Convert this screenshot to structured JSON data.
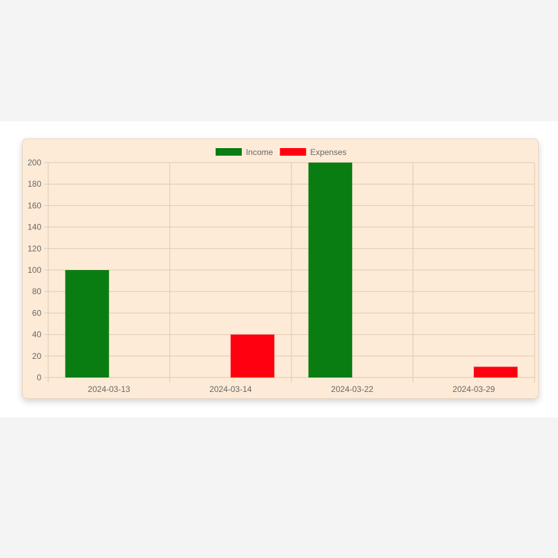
{
  "chart_data": {
    "type": "bar",
    "categories": [
      "2024-03-13",
      "2024-03-14",
      "2024-03-22",
      "2024-03-29"
    ],
    "series": [
      {
        "name": "Income",
        "color": "#0a7d12",
        "values": [
          100,
          0,
          200,
          0
        ]
      },
      {
        "name": "Expenses",
        "color": "#ff0010",
        "values": [
          0,
          40,
          0,
          10
        ]
      }
    ],
    "ylim": [
      0,
      200
    ],
    "yticks": [
      0,
      20,
      40,
      60,
      80,
      100,
      120,
      140,
      160,
      180,
      200
    ],
    "grid": true,
    "legend_position": "top-center",
    "background_color": "#fdebd7",
    "grid_color": "#e0c9b0"
  }
}
